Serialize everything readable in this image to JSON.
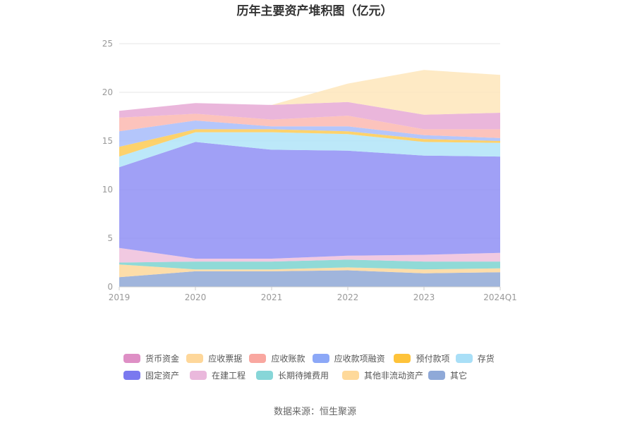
{
  "chart_data": {
    "type": "area",
    "stacked": true,
    "title": "历年主要资产堆积图（亿元）",
    "categories": [
      "2019",
      "2020",
      "2021",
      "2022",
      "2023",
      "2024Q1"
    ],
    "ylim": [
      0,
      25
    ],
    "yticks": [
      0,
      5,
      10,
      15,
      20,
      25
    ],
    "grid": true,
    "legend_position": "bottom",
    "series": [
      {
        "name": "其它",
        "color": "#8fa8d6",
        "values": [
          1.0,
          1.6,
          1.6,
          1.7,
          1.4,
          1.5
        ]
      },
      {
        "name": "其他非流动资产",
        "color": "#fdd79a",
        "values": [
          1.3,
          0.2,
          0.2,
          0.3,
          0.4,
          0.4
        ]
      },
      {
        "name": "长期待摊费用",
        "color": "#7dd4d0",
        "values": [
          0.2,
          0.8,
          0.8,
          0.8,
          0.8,
          0.7
        ]
      },
      {
        "name": "在建工程",
        "color": "#efc0dc",
        "values": [
          1.5,
          0.3,
          0.3,
          0.4,
          0.7,
          0.9
        ]
      },
      {
        "name": "固定资产",
        "color": "#8f8ff5",
        "values": [
          8.3,
          12.0,
          11.2,
          10.8,
          10.2,
          9.9
        ]
      },
      {
        "name": "存货",
        "color": "#b0e4f8",
        "values": [
          1.1,
          1.0,
          1.8,
          1.7,
          1.4,
          1.4
        ]
      },
      {
        "name": "预付款项",
        "color": "#fdca52",
        "values": [
          1.0,
          0.3,
          0.3,
          0.3,
          0.3,
          0.2
        ]
      },
      {
        "name": "应收款项融资",
        "color": "#a7bcfa",
        "values": [
          1.6,
          0.9,
          0.3,
          0.5,
          0.4,
          0.3
        ]
      },
      {
        "name": "应收账款",
        "color": "#fbb9b0",
        "values": [
          1.4,
          0.7,
          0.7,
          1.1,
          0.6,
          0.9
        ]
      },
      {
        "name": "货币资金",
        "color": "#e6a9d5",
        "values": [
          0.7,
          1.1,
          1.5,
          1.4,
          1.5,
          1.7
        ]
      },
      {
        "name": "其他非流动资产",
        "color": "#fee6bb",
        "values": [
          0,
          0,
          0,
          1.9,
          4.6,
          3.9
        ]
      }
    ]
  },
  "legend": {
    "items": [
      {
        "label": "货币资金",
        "color": "#de8fc5"
      },
      {
        "label": "应收票据",
        "color": "#fed79a"
      },
      {
        "label": "应收账款",
        "color": "#f9a7a0"
      },
      {
        "label": "应收款项融资",
        "color": "#8ca8f7"
      },
      {
        "label": "预付款项",
        "color": "#fec33a"
      },
      {
        "label": "存货",
        "color": "#a9dff7"
      },
      {
        "label": "固定资产",
        "color": "#7a79ef"
      },
      {
        "label": "在建工程",
        "color": "#eab8dc"
      },
      {
        "label": "长期待摊费用",
        "color": "#87d6d8"
      },
      {
        "label": "其他非流动资产",
        "color": "#fed99a"
      },
      {
        "label": "其它",
        "color": "#8fa9d8"
      }
    ]
  },
  "source": "数据来源：恒生聚源"
}
